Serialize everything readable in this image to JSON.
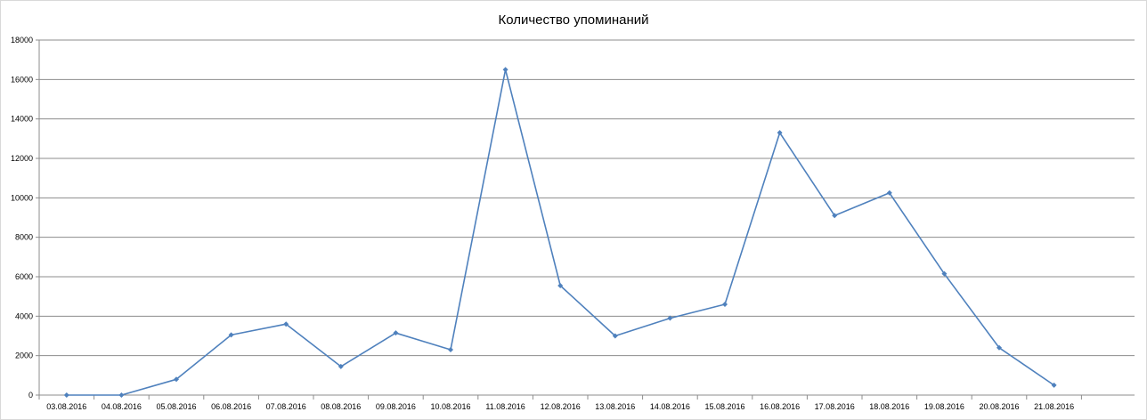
{
  "chart_data": {
    "type": "line",
    "title": "Количество упоминаний",
    "xlabel": "",
    "ylabel": "",
    "ylim": [
      0,
      18000
    ],
    "y_ticks": [
      0,
      2000,
      4000,
      6000,
      8000,
      10000,
      12000,
      14000,
      16000,
      18000
    ],
    "y_tick_labels": [
      "0",
      "2000",
      "4000",
      "6000",
      "8000",
      "10000",
      "12000",
      "14000",
      "16000",
      "18000"
    ],
    "grid": true,
    "legend": "none",
    "categories": [
      "03.08.2016",
      "04.08.2016",
      "05.08.2016",
      "06.08.2016",
      "07.08.2016",
      "08.08.2016",
      "09.08.2016",
      "10.08.2016",
      "11.08.2016",
      "12.08.2016",
      "13.08.2016",
      "14.08.2016",
      "15.08.2016",
      "16.08.2016",
      "17.08.2016",
      "18.08.2016",
      "19.08.2016",
      "20.08.2016",
      "21.08.2016"
    ],
    "series": [
      {
        "values": [
          0,
          0,
          800,
          3050,
          3600,
          1450,
          3150,
          2300,
          16500,
          5550,
          3000,
          3900,
          4600,
          13300,
          9100,
          10250,
          6150,
          2400,
          500
        ],
        "color": "#4f81bd"
      }
    ],
    "colors": {
      "line": "#4f81bd",
      "grid": "#8c8c8c",
      "axis": "#8c8c8c"
    }
  }
}
